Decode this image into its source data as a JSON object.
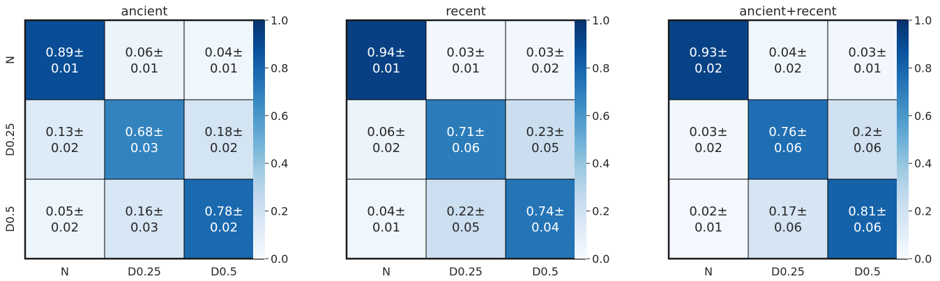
{
  "colorbar": {
    "ticks": [
      "0.0",
      "0.2",
      "0.4",
      "0.6",
      "0.8",
      "1.0"
    ],
    "range": [
      0,
      1
    ],
    "colormap": [
      "#f7fbff",
      "#deebf7",
      "#c6dbef",
      "#9ecae1",
      "#6baed6",
      "#4292c6",
      "#2171b5",
      "#08519c",
      "#08306b"
    ]
  },
  "chart_data": [
    {
      "type": "heatmap",
      "title": "ancient",
      "x_labels": [
        "N",
        "D0.25",
        "D0.5"
      ],
      "y_labels": [
        "N",
        "D0.25",
        "D0.5"
      ],
      "values": [
        [
          0.89,
          0.06,
          0.04
        ],
        [
          0.13,
          0.68,
          0.18
        ],
        [
          0.05,
          0.16,
          0.78
        ]
      ],
      "cells": [
        [
          [
            "0.89±",
            "0.01"
          ],
          [
            "0.06±",
            "0.01"
          ],
          [
            "0.04±",
            "0.01"
          ]
        ],
        [
          [
            "0.13±",
            "0.02"
          ],
          [
            "0.68±",
            "0.03"
          ],
          [
            "0.18±",
            "0.02"
          ]
        ],
        [
          [
            "0.05±",
            "0.02"
          ],
          [
            "0.16±",
            "0.03"
          ],
          [
            "0.78±",
            "0.02"
          ]
        ]
      ]
    },
    {
      "type": "heatmap",
      "title": "recent",
      "x_labels": [
        "N",
        "D0.25",
        "D0.5"
      ],
      "y_labels": [],
      "values": [
        [
          0.94,
          0.03,
          0.03
        ],
        [
          0.06,
          0.71,
          0.23
        ],
        [
          0.04,
          0.22,
          0.74
        ]
      ],
      "cells": [
        [
          [
            "0.94±",
            "0.01"
          ],
          [
            "0.03±",
            "0.01"
          ],
          [
            "0.03±",
            "0.02"
          ]
        ],
        [
          [
            "0.06±",
            "0.02"
          ],
          [
            "0.71±",
            "0.06"
          ],
          [
            "0.23±",
            "0.05"
          ]
        ],
        [
          [
            "0.04±",
            "0.01"
          ],
          [
            "0.22±",
            "0.05"
          ],
          [
            "0.74±",
            "0.04"
          ]
        ]
      ]
    },
    {
      "type": "heatmap",
      "title": "ancient+recent",
      "x_labels": [
        "N",
        "D0.25",
        "D0.5"
      ],
      "y_labels": [],
      "values": [
        [
          0.93,
          0.04,
          0.03
        ],
        [
          0.03,
          0.76,
          0.2
        ],
        [
          0.02,
          0.17,
          0.81
        ]
      ],
      "cells": [
        [
          [
            "0.93±",
            "0.02"
          ],
          [
            "0.04±",
            "0.02"
          ],
          [
            "0.03±",
            "0.01"
          ]
        ],
        [
          [
            "0.03±",
            "0.02"
          ],
          [
            "0.76±",
            "0.06"
          ],
          [
            "0.2±",
            "0.06"
          ]
        ],
        [
          [
            "0.02±",
            "0.01"
          ],
          [
            "0.17±",
            "0.06"
          ],
          [
            "0.81±",
            "0.06"
          ]
        ]
      ]
    }
  ]
}
